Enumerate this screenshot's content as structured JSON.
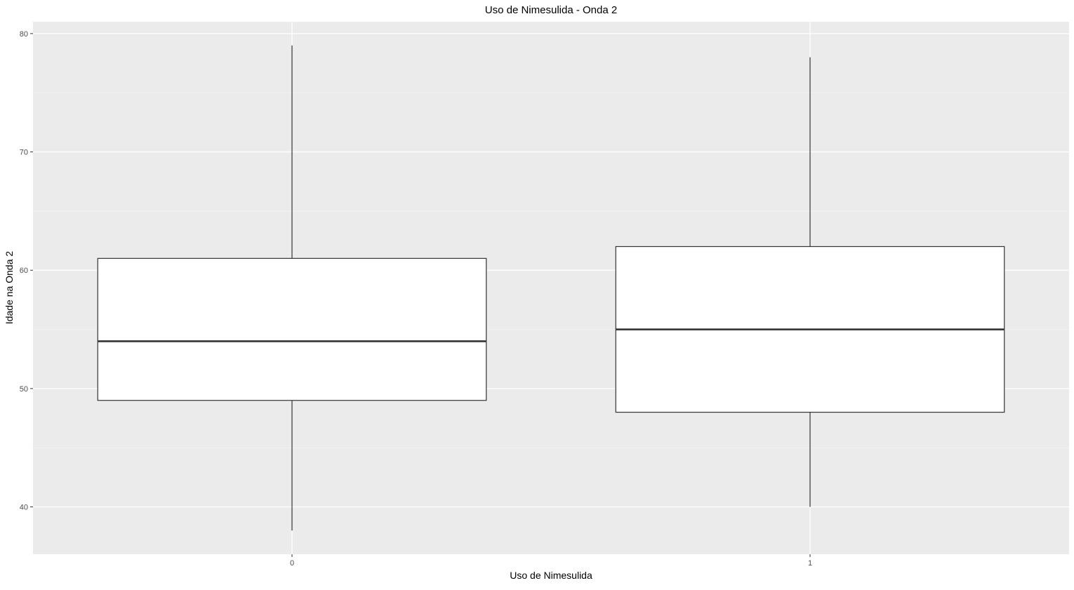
{
  "chart_data": {
    "type": "boxplot",
    "title": "Uso de Nimesulida - Onda 2",
    "xlabel": "Uso de Nimesulida",
    "ylabel": "Idade na Onda 2",
    "categories": [
      "0",
      "1"
    ],
    "boxes": [
      {
        "category": "0",
        "whisker_low": 38,
        "q1": 49,
        "median": 54,
        "q3": 61,
        "whisker_high": 79
      },
      {
        "category": "1",
        "whisker_low": 40,
        "q1": 48,
        "median": 55,
        "q3": 62,
        "whisker_high": 78
      }
    ],
    "ylim": [
      36,
      81
    ],
    "y_ticks": [
      40,
      50,
      60,
      70,
      80
    ],
    "y_minor_ticks": [
      45,
      55,
      65,
      75
    ],
    "grid": true,
    "legend": "none"
  },
  "colors": {
    "panel_background": "#ebebeb",
    "grid_major": "#ffffff",
    "grid_minor": "#f5f5f5",
    "box_fill": "#ffffff",
    "box_stroke": "#333333",
    "tick_text": "#4d4d4d",
    "axis_title_text": "#000000"
  }
}
